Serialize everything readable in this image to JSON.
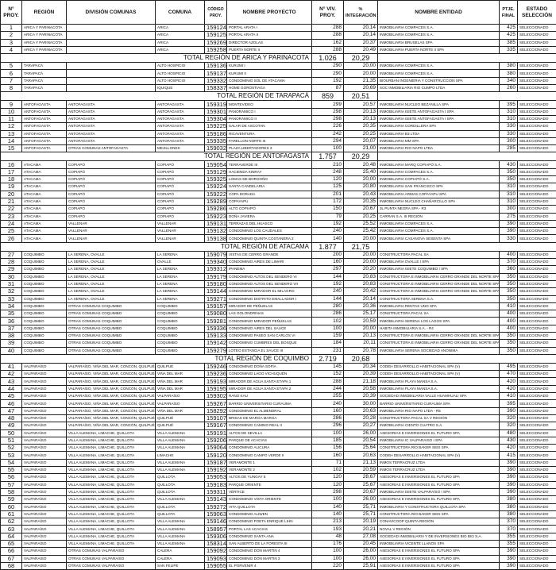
{
  "headers": [
    "N° PROY.",
    "REGIÓN",
    "DIVISIÓN COMUNAS",
    "COMUNA",
    "CÓDIGO PROY.",
    "NOMBRE PROYECTO",
    "N° VIV. PROY.",
    "% INTEGRACIÓN",
    "NOMBRE ENTIDAD",
    "PTJE. FINAL",
    "ESTADO SELECCIÓN"
  ],
  "body": [
    [
      "1",
      "ARICA Y PARINACOTA",
      "",
      "ARICA",
      "159124",
      "PORTAL ARATA I",
      "288",
      "20,14",
      "INMOBILIARIA COMPACES S.A.",
      "425",
      "SELECCIONADO"
    ],
    [
      "2",
      "ARICA Y PARINACOTA",
      "",
      "ARICA",
      "159125",
      "PORTAL ARATA II",
      "288",
      "20,14",
      "INMOBILIARIA COMPACES S.A.",
      "425",
      "SELECCIONADO"
    ],
    [
      "3",
      "ARICA Y PARINACOTA",
      "",
      "ARICA",
      "159269",
      "DIRECTOR AZOLAS",
      "162",
      "20,37",
      "INMOBILIARIA BRUSELAS SPA",
      "385",
      "SELECCIONADO"
    ],
    [
      "4",
      "ARICA Y PARINACOTA",
      "",
      "ARICA",
      "159258",
      "PUERTA NORTE II",
      "288",
      "20,49",
      "INMOBILIARIA PUERTA NORTE II SPA",
      "335",
      "SELECCIONADO"
    ],
    {
      "label": "TOTAL REGIÓN DE ARICA Y PARINACOTA",
      "viv": "1.026",
      "pct": "20,29"
    },
    [
      "5",
      "TARAPACÁ",
      "",
      "ALTO HOSPICIO",
      "159136",
      "KURUMI I",
      "290",
      "20,00",
      "INMOBILIARIA COMPACES S.A.",
      "380",
      "SELECCIONADO"
    ],
    [
      "6",
      "TARAPACÁ",
      "",
      "ALTO HOSPICIO",
      "159137",
      "KURUMI II",
      "290",
      "20,00",
      "INMOBILIARIA COMPACES S.A.",
      "380",
      "SELECCIONADO"
    ],
    [
      "7",
      "TARAPACÁ",
      "",
      "ALTO HOSPICIO",
      "159332",
      "CONDOMINIO SOL DE ATACAMA",
      "192",
      "21,35",
      "BIOURBAN INGENIERIA Y CONSTRUCCION SPA",
      "340",
      "SELECCIONADO"
    ],
    [
      "8",
      "TARAPACÁ",
      "",
      "IQUIQUE",
      "158337",
      "HOME GOROSTIAGA",
      "87",
      "20,69",
      "SOC INMOBILIARIA RIO CUMPO LTDA",
      "260",
      "SELECCIONADO"
    ],
    {
      "label": "TOTAL REGIÓN DE TARAPACÁ",
      "viv": "859",
      "pct": "20,51"
    },
    [
      "9",
      "ANTOFAGASTA",
      "ANTOFAGASTA",
      "ANTOFAGASTA",
      "159319",
      "MONTEVIDEO",
      "299",
      "20,57",
      "INMOBILIARIA NUCLEO BEZANILLA SPA",
      "395",
      "SELECCIONADO"
    ],
    [
      "10",
      "ANTOFAGASTA",
      "ANTOFAGASTA",
      "ANTOFAGASTA",
      "159301",
      "PANORÁMICO I",
      "298",
      "20,13",
      "INMOBILIARIA ISIETE ANTOFAGASTA I SPA",
      "310",
      "SELECCIONADO"
    ],
    [
      "11",
      "ANTOFAGASTA",
      "ANTOFAGASTA",
      "ANTOFAGASTA",
      "159304",
      "PANORÁMICO II",
      "298",
      "20,13",
      "INMOBILIARIA ISIETE ANTOFAGASTA I SPA",
      "310",
      "SELECCIONADO"
    ],
    [
      "12",
      "ANTOFAGASTA",
      "ANTOFAGASTA",
      "ANTOFAGASTA",
      "159225",
      "SALAR DE ASCOTAN",
      "226",
      "20,35",
      "INMOBILIARIA CORDILLERA SPA",
      "330",
      "SELECCIONADO"
    ],
    [
      "13",
      "ANTOFAGASTA",
      "ANTOFAGASTA",
      "ANTOFAGASTA",
      "159186",
      "RICAVENTURA",
      "242",
      "20,25",
      "INMOBILIARIA B3 LTDA",
      "330",
      "SELECCIONADO"
    ],
    [
      "14",
      "ANTOFAGASTA",
      "ANTOFAGASTA",
      "ANTOFAGASTA",
      "159335",
      "FARELLON NORTE III",
      "294",
      "20,07",
      "INMOBILIARIA MM SPA",
      "300",
      "SELECCIONADO"
    ],
    [
      "15",
      "ANTOFAGASTA",
      "OTRAS COMUNAS ANTOFAGASTA",
      "MEJILLONES",
      "159032",
      "PLAZA LIBERTADORES 3",
      "100",
      "21,00",
      "INMOBILIARIA RIO NAPO LTDA",
      "285",
      "SELECCIONADO"
    ],
    {
      "label": "TOTAL REGIÓN DE ANTOFAGASTA",
      "viv": "1.757",
      "pct": "20,29"
    },
    [
      "16",
      "ATACAMA",
      "COPIAPÓ",
      "COPIAPÓ",
      "159054",
      "TERRAVERDE III",
      "210",
      "20,48",
      "INMOBILIARIA MARQ COPIAPÓ S.A.",
      "430",
      "SELECCIONADO"
    ],
    [
      "17",
      "ATACAMA",
      "COPIAPÓ",
      "COPIAPÓ",
      "159129",
      "HACIENDA KINRAY",
      "248",
      "25,40",
      "INMOBILIARIA COMPACES S.A.",
      "350",
      "SELECCIONADO"
    ],
    [
      "18",
      "ATACAMA",
      "COPIAPÓ",
      "COPIAPÓ",
      "159325",
      "LOMAS DE BORGOÑO",
      "120",
      "20,00",
      "INMOBILIARIA COPIAPÓ S.A.",
      "350",
      "SELECCIONADO"
    ],
    [
      "19",
      "ATACAMA",
      "COPIAPÓ",
      "COPIAPÓ",
      "159224",
      "SANTA CANDELARIA",
      "125",
      "20,80",
      "INMOBILIARIA SAN FRANCISCO SPA",
      "310",
      "SELECCIONADO"
    ],
    [
      "20",
      "ATACAMA",
      "COPIAPÓ",
      "COPIAPÓ",
      "159222",
      "COPA DORADA",
      "201",
      "20,43",
      "INMOBILIARIA ARMAS COPAYAPU SPA",
      "310",
      "SELECCIONADO"
    ],
    [
      "21",
      "ATACAMA",
      "COPIAPÓ",
      "COPIAPÓ",
      "159289",
      "COPAYAPU",
      "172",
      "20,35",
      "INMOBILIARIA NUCLEO CHAÑARCILLO SPA",
      "310",
      "SELECCIONADO"
    ],
    [
      "22",
      "ATACAMA",
      "COPIAPÓ",
      "COPIAPÓ",
      "159286",
      "ALTO COPIAPÓ",
      "150",
      "20,67",
      "3L PUNTA NEGRA SPA - R3",
      "300",
      "SELECCIONADO"
    ],
    [
      "23",
      "ATACAMA",
      "COPIAPÓ",
      "COPIAPÓ",
      "159223",
      "DOÑA JAVIERA",
      "79",
      "20,25",
      "CARRAN S.A. III REGIÓN",
      "275",
      "SELECCIONADO"
    ],
    [
      "24",
      "ATACAMA",
      "VALLENAR",
      "VALLENAR",
      "159131",
      "TERRAZAS DEL HUASCO",
      "192",
      "25,52",
      "INMOBILIARIA COMPACES S.A.",
      "390",
      "SELECCIONADO"
    ],
    [
      "25",
      "ATACAMA",
      "VALLENAR",
      "VALLENAR",
      "159132",
      "CONDOMINIO LOS CAUDALES",
      "240",
      "25,42",
      "INMOBILIARIA COMPACES S.A.",
      "390",
      "SELECCIONADO"
    ],
    [
      "26",
      "ATACAMA",
      "VALLENAR",
      "VALLENAR",
      "159138",
      "CONDOMINIO QUINTA COSTANERA 2",
      "140",
      "20,00",
      "INMOBILIARIA CASANOVA SESENTA SPA",
      "330",
      "SELECCIONADO"
    ],
    {
      "label": "TOTAL REGIÓN DE ATACAMA",
      "viv": "1.877",
      "pct": "21,75"
    },
    [
      "27",
      "COQUIMBO",
      "LA SERENA, OVALLE",
      "LA SERENA",
      "159079",
      "VISTAS DE CERRO GRANDE",
      "200",
      "20,00",
      "CONSTRUCTORA PACAL SA",
      "400",
      "SELECCIONADO"
    ],
    [
      "28",
      "COQUIMBO",
      "LA SERENA, OVALLE",
      "OVALLE",
      "159340",
      "CONDOMINIO AIRES DE LIMARÍ",
      "160",
      "20,00",
      "INMOBILIARIA OVALLE I SPA",
      "370",
      "SELECCIONADO"
    ],
    [
      "29",
      "COQUIMBO",
      "LA SERENA, OVALLE",
      "LA SERENA",
      "159312",
      "IPANEMA",
      "297",
      "20,20",
      "INMOBILIARIA ISIETE COQUIMBO I SPA",
      "360",
      "SELECCIONADO"
    ],
    [
      "30",
      "COQUIMBO",
      "LA SERENA, OVALLE",
      "LA SERENA",
      "159179",
      "CONDOMINIO ALTOS DEL SENDERO VI",
      "144",
      "20,83",
      "CONSTRUCTORA E INMOBILIARIA CERRO GRANDE DEL NORTE SPA",
      "350",
      "SELECCIONADO"
    ],
    [
      "31",
      "COQUIMBO",
      "LA SERENA, OVALLE",
      "LA SERENA",
      "159180",
      "CONDOMINIO ALTOS DEL SENDERO VII",
      "192",
      "20,83",
      "CONSTRUCTORA E INMOBILIARIA CERRO GRANDE DEL NORTE SPA",
      "350",
      "SELECCIONADO"
    ],
    [
      "32",
      "COQUIMBO",
      "LA SERENA, OVALLE",
      "LA SERENA",
      "159144",
      "CONDOMINIO MIRADOR EL MILAGRO",
      "240",
      "20,42",
      "CONSTRUCTORA E INMOBILIARIA CERRO GRANDE DEL NORTE SPA",
      "350",
      "SELECCIONADO"
    ],
    [
      "33",
      "COQUIMBO",
      "LA SERENA, OVALLE",
      "LA SERENA",
      "159271",
      "CONDOMINIO DISTRITO EMALLADOR I",
      "144",
      "20,14",
      "CONSTRUCTORA SERENA S.A.",
      "350",
      "SELECCIONADO"
    ],
    [
      "34",
      "COQUIMBO",
      "OTRAS COMUNAS COQUIMBO",
      "COQUIMBO",
      "159157",
      "MIRADOR DE PEÑUELAS",
      "280",
      "20,36",
      "INMOBILIARIA RENTAS UNO SPA",
      "410",
      "SELECCIONADO"
    ],
    [
      "35",
      "COQUIMBO",
      "OTRAS COMUNAS COQUIMBO",
      "COQUIMBO",
      "159080",
      "LAS GOLONDRINAS",
      "286",
      "25,17",
      "CONSTRUCTORA PACAL SA",
      "400",
      "SELECCIONADO"
    ],
    [
      "36",
      "COQUIMBO",
      "OTRAS COMUNAS COQUIMBO",
      "COQUIMBO",
      "159281",
      "CONDOMINIO MIRADOR PEÑUELAS",
      "102",
      "20,59",
      "INMOBILIARIA SERENA LOS LAGOS SPA",
      "400",
      "SELECCIONADO"
    ],
    [
      "37",
      "COQUIMBO",
      "OTRAS COMUNAS COQUIMBO",
      "COQUIMBO",
      "159336",
      "CONDOMINIO AIRES DEL SAUCE",
      "100",
      "20,00",
      "HABITA INMOBILIARIA S.A. - R4",
      "400",
      "SELECCIONADO"
    ],
    [
      "38",
      "COQUIMBO",
      "OTRAS COMUNAS COQUIMBO",
      "COQUIMBO",
      "159133",
      "CONDOMINIO PASEO SAN CARLOS VI",
      "159",
      "20,13",
      "CONSTRUCTORA E INMOBILIARIA CERRO GRANDE DEL NORTE SPA",
      "350",
      "SELECCIONADO"
    ],
    [
      "39",
      "COQUIMBO",
      "OTRAS COMUNAS COQUIMBO",
      "COQUIMBO",
      "159142",
      "CONDOMINIO CUMBRES DEL BOSQUE",
      "184",
      "20,11",
      "CONSTRUCTORA E INMOBILIARIA CERRO GRANDE DEL NORTE SPA",
      "350",
      "SELECCIONADO"
    ],
    [
      "40",
      "COQUIMBO",
      "OTRAS COMUNAS COQUIMBO",
      "COQUIMBO",
      "159279",
      "LOTEO ESTANCIA EL SAUCE III",
      "231",
      "20,78",
      "INMOBILIARIA SERENA SOCIEDAD ANONIMA",
      "350",
      "SELECCIONADO"
    ],
    {
      "label": "TOTAL REGIÓN DE COQUIMBO",
      "viv": "2.719",
      "pct": "20,68"
    },
    [
      "41",
      "VALPARAÍSO",
      "VALPARAÍSO, VIÑA DEL MAR, CONCÓN, QUILPUÉ",
      "QUILPUÉ",
      "159246",
      "CONDOMINIO DOÑA SOFÍA",
      "145",
      "20,34",
      "CODEH DESARROLLO HABITACIONAL SPA (V)",
      "495",
      "SELECCIONADO"
    ],
    [
      "42",
      "VALPARAÍSO",
      "VALPARAÍSO, VIÑA DEL MAR, CONCÓN, QUILPUÉ",
      "VIÑA DEL MAR",
      "159236",
      "CONDOMINIO LAGO VICHUQUÉN",
      "152",
      "20,39",
      "CODEH DESARROLLO HABITACIONAL SPA (V)",
      "470",
      "SELECCIONADO"
    ],
    [
      "43",
      "VALPARAÍSO",
      "VALPARAÍSO, VIÑA DEL MAR, CONCÓN, QUILPUÉ",
      "VIÑA DEL MAR",
      "159193",
      "MIRADOR DE AGUA SANTA ETAPA 1",
      "288",
      "21,18",
      "INMOBILIARIA PLAYA MANSA S.A.",
      "420",
      "SELECCIONADO"
    ],
    [
      "44",
      "VALPARAÍSO",
      "VALPARAÍSO, VIÑA DEL MAR, CONCÓN, QUILPUÉ",
      "VIÑA DEL MAR",
      "159195",
      "MIRADOR DE AGUA SANTA ETAPA 2",
      "244",
      "20,58",
      "INMOBILIARIA PLAYA MANSA S.A.",
      "420",
      "SELECCIONADO"
    ],
    [
      "45",
      "VALPARAÍSO",
      "VALPARAÍSO, VIÑA DEL MAR, CONCÓN, QUILPUÉ",
      "VALPARAÍSO",
      "159302",
      "RANO KAU",
      "255",
      "20,39",
      "SOCIEDAD INMOBILIARIA VALLE HUAMHUALI SPA",
      "410",
      "SELECCIONADO"
    ],
    [
      "46",
      "VALPARAÍSO",
      "VALPARAÍSO, VIÑA DEL MAR, CONCÓN, QUILPUÉ",
      "VALPARAÍSO",
      "159267",
      "BARRIO UNIVERSITARIO CURAUMA",
      "240",
      "30,00",
      "BARRIO UNIVERSITARIO CURAUMA SPA",
      "395",
      "SELECCIONADO"
    ],
    [
      "47",
      "VALPARAÍSO",
      "VALPARAÍSO, VIÑA DEL MAR, CONCÓN, QUILPUÉ",
      "VIÑA DEL MAR",
      "158292",
      "CONDOMINIO EL ALMENDRAL",
      "160",
      "20,63",
      "INMOBILIARIA RIO NAPO LTDA - R5",
      "390",
      "SELECCIONADO"
    ],
    [
      "48",
      "VALPARAÍSO",
      "VALPARAÍSO, VIÑA DEL MAR, CONCÓN, QUILPUÉ",
      "QUILPUÉ",
      "159107",
      "BRISAS DE MARGA MARGA",
      "286",
      "20,28",
      "CONSTRUCTORA PACAL SA V REGIÓN",
      "320",
      "SELECCIONADO"
    ],
    [
      "49",
      "VALPARAÍSO",
      "VALPARAÍSO, VIÑA DEL MAR, CONCÓN, QUILPUÉ",
      "QUILPUÉ",
      "159167",
      "CONDOMINIO CAMINO REAL II",
      "296",
      "20,27",
      "INMOBILIARIA CIENTO CUATRO S.A.",
      "320",
      "SELECCIONADO"
    ],
    [
      "50",
      "VALPARAÍSO",
      "VILLA ALEMANA, LIMACHE, QUILLOTA",
      "VILLA ALEMANA",
      "159191",
      "ALTOS DE SEVILLA",
      "100",
      "26,00",
      "ASESORIAS E INVERSIONES EL FUTURO SPA",
      "480",
      "SELECCIONADO"
    ],
    [
      "51",
      "VALPARAÍSO",
      "VILLA ALEMANA, LIMACHE, QUILLOTA",
      "VILLA ALEMANA",
      "159206",
      "PARQUE DE ACACIAS",
      "185",
      "20,54",
      "INMOBILIARIA IC VALPARAISO I SPA",
      "430",
      "SELECCIONADO"
    ],
    [
      "52",
      "VALPARAÍSO",
      "VILLA ALEMANA, LIMACHE, QUILLOTA",
      "VILLA ALEMANA",
      "159064",
      "CONDOMINIO ALICURA",
      "156",
      "25,64",
      "CONSTRUCTORA RIO BAKER SEIS SPA",
      "420",
      "SELECCIONADO"
    ],
    [
      "53",
      "VALPARAÍSO",
      "VILLA ALEMANA, LIMACHE, QUILLOTA",
      "LIMACHE",
      "159120",
      "CONDOMINIO CAMPO VERDE II",
      "160",
      "20,63",
      "CODEH DESARROLLO HABITACIONAL SPA (V)",
      "415",
      "SELECCIONADO"
    ],
    [
      "54",
      "VALPARAÍSO",
      "VILLA ALEMANA, LIMACHE, QUILLOTA",
      "VILLA ALEMANA",
      "159187",
      "VERAMONTE 1",
      "71",
      "21,13",
      "INMOS TERRACRUZ LTDA",
      "390",
      "SELECCIONADO"
    ],
    [
      "55",
      "VALPARAÍSO",
      "VILLA ALEMANA, LIMACHE, QUILLOTA",
      "VILLA ALEMANA",
      "159192",
      "VERAMONTE 2",
      "102",
      "20,59",
      "INMOS TERRACRUZ LTDA",
      "390",
      "SELECCIONADO"
    ],
    [
      "56",
      "VALPARAÍSO",
      "VILLA ALEMANA, LIMACHE, QUILLOTA",
      "QUILLOTA",
      "159053",
      "ALTOS DE YUNGAY 5",
      "120",
      "28,67",
      "ASESORIAS E INVERSIONES EL FUTURO SPA",
      "390",
      "SELECCIONADO"
    ],
    [
      "57",
      "VALPARAÍSO",
      "VILLA ALEMANA, LIMACHE, QUILLOTA",
      "QUILLOTA",
      "159183",
      "PARQUE ORIENTE",
      "120",
      "25,67",
      "ASESORIAS E INVERSIONES EL FUTURO SPA",
      "390",
      "SELECCIONADO"
    ],
    [
      "58",
      "VALPARAÍSO",
      "VILLA ALEMANA, LIMACHE, QUILLOTA",
      "QUILLOTA",
      "159311",
      "VÉRTICE",
      "298",
      "20,67",
      "INMOBILIARIA ISIETE VALPARAÍSO I SPA",
      "390",
      "SELECCIONADO"
    ],
    [
      "59",
      "VALPARAÍSO",
      "VILLA ALEMANA, LIMACHE, QUILLOTA",
      "VILLA ALEMANA",
      "159143",
      "CONDOMINIO VISTA ORIENTE",
      "100",
      "26,00",
      "ASESORIAS E INVERSIONES EL FUTURO SPA",
      "380",
      "SELECCIONADO"
    ],
    [
      "60",
      "VALPARAÍSO",
      "VILLA ALEMANA, LIMACHE, QUILLOTA",
      "QUILLOTA",
      "159272",
      "VITA QUILLOTA",
      "140",
      "25,71",
      "INMOBILIARIA Y CONSTRUCTORA QUILLOTA SPA",
      "380",
      "SELECCIONADO"
    ],
    [
      "61",
      "VALPARAÍSO",
      "VILLA ALEMANA, LIMACHE, QUILLOTA",
      "QUILLOTA",
      "159063",
      "CONDOMINIO ALIWEN",
      "140",
      "25,71",
      "CONSTRUCTORA RIO BAKER SEIS SPA",
      "380",
      "SELECCIONADO"
    ],
    [
      "62",
      "VALPARAÍSO",
      "VILLA ALEMANA, LIMACHE, QUILLOTA",
      "VILLA ALEMANA",
      "159146",
      "CONDOMINIO POETA ENRIQUE LIHN",
      "213",
      "20,19",
      "CONAVICOOP QUINTA REGIÓN",
      "370",
      "SELECCIONADO"
    ],
    [
      "63",
      "VALPARAÍSO",
      "VILLA ALEMANA, LIMACHE, QUILLOTA",
      "VILLA ALEMANA",
      "158957",
      "PORTAL LAS ACACIAS",
      "193",
      "20,21",
      "NOVAL V REGIÓN",
      "370",
      "SELECCIONADO"
    ],
    [
      "64",
      "VALPARAÍSO",
      "VILLA ALEMANA, LIMACHE, QUILLOTA",
      "VILLA ALEMANA",
      "159306",
      "CONDOMINIO SANTA ANA",
      "48",
      "27,08",
      "SOCIEDAD INMOBILIARIA Y DE INVERSIONES BIO BIO S.A.",
      "355",
      "SELECCIONADO"
    ],
    [
      "65",
      "VALPARAÍSO",
      "VILLA ALEMANA, LIMACHE, QUILLOTA",
      "VILLA ALEMANA",
      "158314",
      "SAN ALBERTO DE LA FORESTA III",
      "176",
      "20,45",
      "INMOBILIARIA VICENTE LLANOS SPA",
      "355",
      "SELECCIONADO"
    ],
    [
      "66",
      "VALPARAÍSO",
      "OTRAS COMUNAS VALPARAÍSO",
      "CALERA",
      "159092",
      "CONDOMINIO DON MARTÍN 4",
      "100",
      "26,00",
      "ASESORIAS E INVERSIONES EL FUTURO SPA",
      "390",
      "SELECCIONADO"
    ],
    [
      "67",
      "VALPARAÍSO",
      "OTRAS COMUNAS VALPARAÍSO",
      "CALERA",
      "159093",
      "CONDOMINIO DON MARTÍN 3",
      "100",
      "26,00",
      "ASESORIAS E INVERSIONES EL FUTURO SPA",
      "390",
      "SELECCIONADO"
    ],
    [
      "68",
      "VALPARAÍSO",
      "OTRAS COMUNAS VALPARAÍSO",
      "SAN FELIPE",
      "159055",
      "EL PORVENIR 4",
      "220",
      "25,91",
      "ASESORIAS E INVERSIONES EL FUTURO SPA",
      "390",
      "SELECCIONADO"
    ]
  ]
}
